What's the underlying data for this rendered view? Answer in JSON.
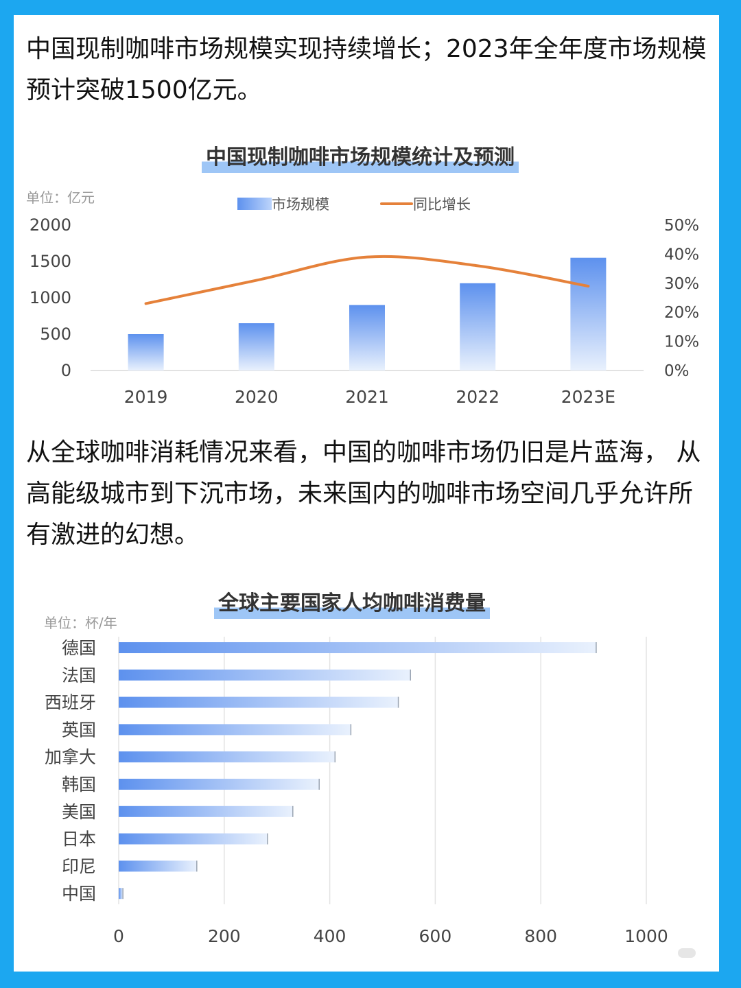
{
  "paragraphs": {
    "p1": "中国现制咖啡市场规模实现持续增长；2023年全年度市场规模预计突破1500亿元。",
    "p2": "从全球咖啡消耗情况来看，中国的咖啡市场仍旧是片蓝海， 从高能级城市到下沉市场，未来国内的咖啡市场空间几乎允许所有激进的幻想。"
  },
  "colors": {
    "frame": "#1ca7f0",
    "bar": "#5d91ee",
    "bar_light": "#e9f1fd",
    "line": "#e5813a",
    "title_highlight": "#9ec6f6"
  },
  "chart_data": [
    {
      "type": "bar",
      "title": "中国现制咖啡市场规模统计及预测",
      "unit_label": "单位：亿元",
      "categories": [
        "2019",
        "2020",
        "2021",
        "2022",
        "2023E"
      ],
      "series": [
        {
          "name": "市场规模",
          "type": "bar",
          "axis": "left",
          "values": [
            500,
            650,
            900,
            1200,
            1550
          ]
        },
        {
          "name": "同比增长",
          "type": "line",
          "axis": "right",
          "smooth": true,
          "values": [
            23,
            31,
            39,
            36,
            29
          ]
        }
      ],
      "y_left": {
        "min": 0,
        "max": 2000,
        "ticks": [
          "2000",
          "1500",
          "1000",
          "500",
          "0"
        ]
      },
      "y_right": {
        "min": 0,
        "max": 50,
        "ticks": [
          "50%",
          "40%",
          "30%",
          "20%",
          "10%",
          "0%"
        ]
      },
      "legend": "top-center",
      "grid": false
    },
    {
      "type": "bar",
      "orientation": "horizontal",
      "title": "全球主要国家人均咖啡消费量",
      "unit_label": "单位：杯/年",
      "categories": [
        "德国",
        "法国",
        "西班牙",
        "英国",
        "加拿大",
        "韩国",
        "美国",
        "日本",
        "印尼",
        "中国"
      ],
      "values": [
        905,
        553,
        530,
        440,
        410,
        380,
        330,
        282,
        148,
        8
      ],
      "x_axis": {
        "min": 0,
        "max": 1000,
        "ticks": [
          "0",
          "200",
          "400",
          "600",
          "800",
          "1000"
        ]
      },
      "grid": "vertical"
    }
  ]
}
